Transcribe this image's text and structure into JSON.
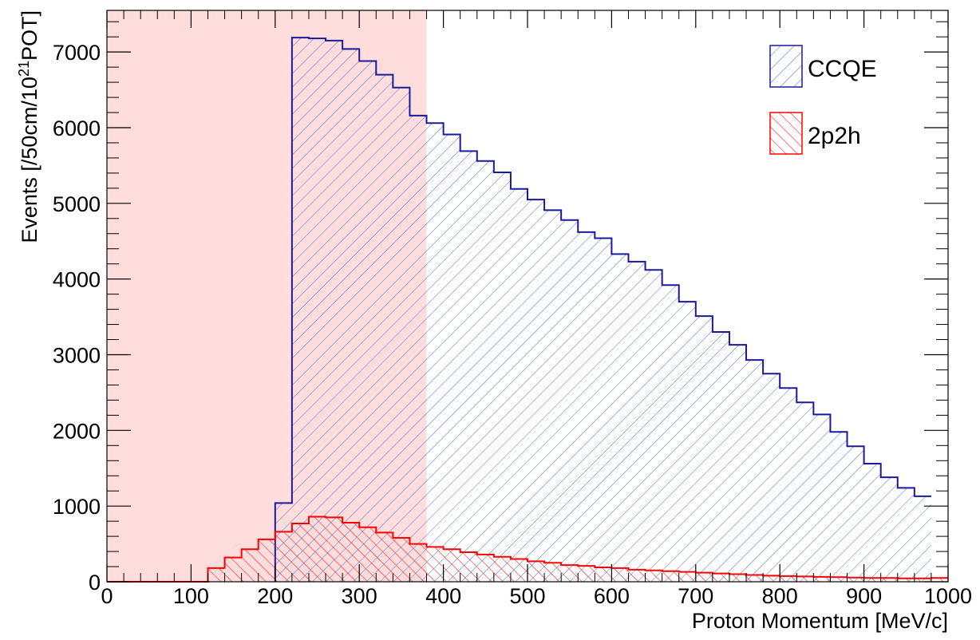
{
  "chart_data": {
    "type": "bar",
    "xlabel": "Proton Momentum [MeV/c]",
    "ylabel": {
      "prefix": "Events [/50cm/10",
      "superscript": "21",
      "suffix": "POT]"
    },
    "xlim": [
      0,
      1000
    ],
    "ylim": [
      0,
      7550
    ],
    "x_ticks": [
      0,
      100,
      200,
      300,
      400,
      500,
      600,
      700,
      800,
      900,
      1000
    ],
    "y_ticks": [
      0,
      1000,
      2000,
      3000,
      4000,
      5000,
      6000,
      7000
    ],
    "bin_width": 20,
    "shaded_region": {
      "x_from": 0,
      "x_to": 380,
      "color": "#ffdddd"
    },
    "grid": false,
    "legend_position": "top-right",
    "series": [
      {
        "name": "CCQE",
        "color": "#1a1a9a",
        "hatch": "/",
        "bins_from": 200,
        "values": [
          1040,
          7190,
          7180,
          7150,
          7040,
          6880,
          6700,
          6530,
          6160,
          6060,
          5910,
          5690,
          5560,
          5410,
          5190,
          5050,
          4910,
          4780,
          4620,
          4540,
          4330,
          4230,
          4120,
          3920,
          3700,
          3510,
          3300,
          3130,
          2930,
          2750,
          2560,
          2370,
          2210,
          1980,
          1790,
          1560,
          1380,
          1240,
          1130
        ]
      },
      {
        "name": "2p2h",
        "color": "#ff0000",
        "hatch": "\\",
        "bins_from": 0,
        "values": [
          0,
          0,
          0,
          0,
          0,
          0,
          180,
          320,
          430,
          560,
          660,
          770,
          860,
          850,
          780,
          720,
          650,
          580,
          500,
          460,
          430,
          390,
          360,
          330,
          300,
          270,
          250,
          220,
          210,
          190,
          180,
          160,
          150,
          140,
          130,
          120,
          110,
          100,
          90,
          80,
          75,
          70,
          65,
          60,
          55,
          50,
          50,
          45,
          45,
          50
        ]
      }
    ]
  }
}
